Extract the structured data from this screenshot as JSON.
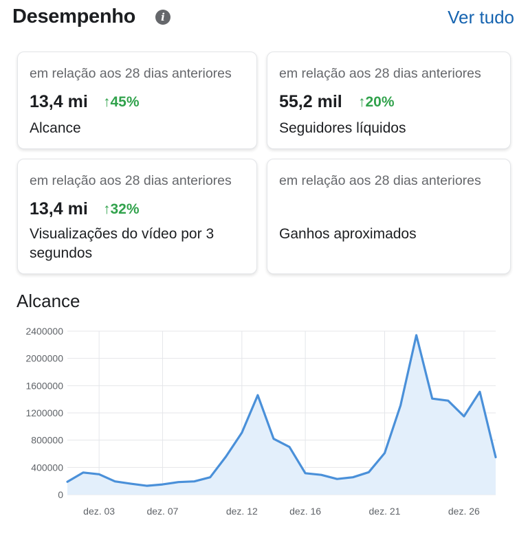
{
  "header": {
    "title": "Desempenho",
    "info_icon": "info-icon",
    "see_all": "Ver tudo"
  },
  "cards": [
    {
      "subtitle": "em relação aos 28 dias anteriores",
      "value": "13,4 mi",
      "change": "↑45%",
      "label": "Alcance"
    },
    {
      "subtitle": "em relação aos 28 dias anteriores",
      "value": "55,2 mil",
      "change": "↑20%",
      "label": "Seguidores líquidos"
    },
    {
      "subtitle": "em relação aos 28 dias anteriores",
      "value": "13,4 mi",
      "change": "↑32%",
      "label": "Visualizações do vídeo por 3 segundos"
    },
    {
      "subtitle": "em relação aos 28 dias anteriores",
      "value": "",
      "change": "",
      "label": "Ganhos aproximados"
    }
  ],
  "colors": {
    "accent": "#1664b0",
    "positive": "#31a24c",
    "line": "#4a90d9",
    "area": "#e3effb"
  },
  "section_title": "Alcance",
  "chart_data": {
    "type": "area",
    "title": "",
    "xlabel": "",
    "ylabel": "",
    "x_tick_labels": [
      "dez. 03",
      "dez. 07",
      "dez. 12",
      "dez. 16",
      "dez. 21",
      "dez. 26"
    ],
    "y_tick_labels": [
      "0",
      "400000",
      "800000",
      "1200000",
      "1600000",
      "2000000",
      "2400000"
    ],
    "ylim": [
      0,
      2400000
    ],
    "grid": true,
    "series": [
      {
        "x": [
          "dez. 01",
          "dez. 02",
          "dez. 03",
          "dez. 04",
          "dez. 05",
          "dez. 06",
          "dez. 07",
          "dez. 08",
          "dez. 09",
          "dez. 10",
          "dez. 11",
          "dez. 12",
          "dez. 13",
          "dez. 14",
          "dez. 15",
          "dez. 16",
          "dez. 17",
          "dez. 18",
          "dez. 19",
          "dez. 20",
          "dez. 21",
          "dez. 22",
          "dez. 23",
          "dez. 24",
          "dez. 25",
          "dez. 26",
          "dez. 27",
          "dez. 28"
        ],
        "values": [
          190000,
          325000,
          300000,
          195000,
          160000,
          130000,
          150000,
          185000,
          195000,
          255000,
          560000,
          910000,
          1460000,
          820000,
          700000,
          315000,
          290000,
          230000,
          255000,
          330000,
          610000,
          1310000,
          2340000,
          1410000,
          1380000,
          1150000,
          1510000,
          550000
        ]
      }
    ]
  }
}
